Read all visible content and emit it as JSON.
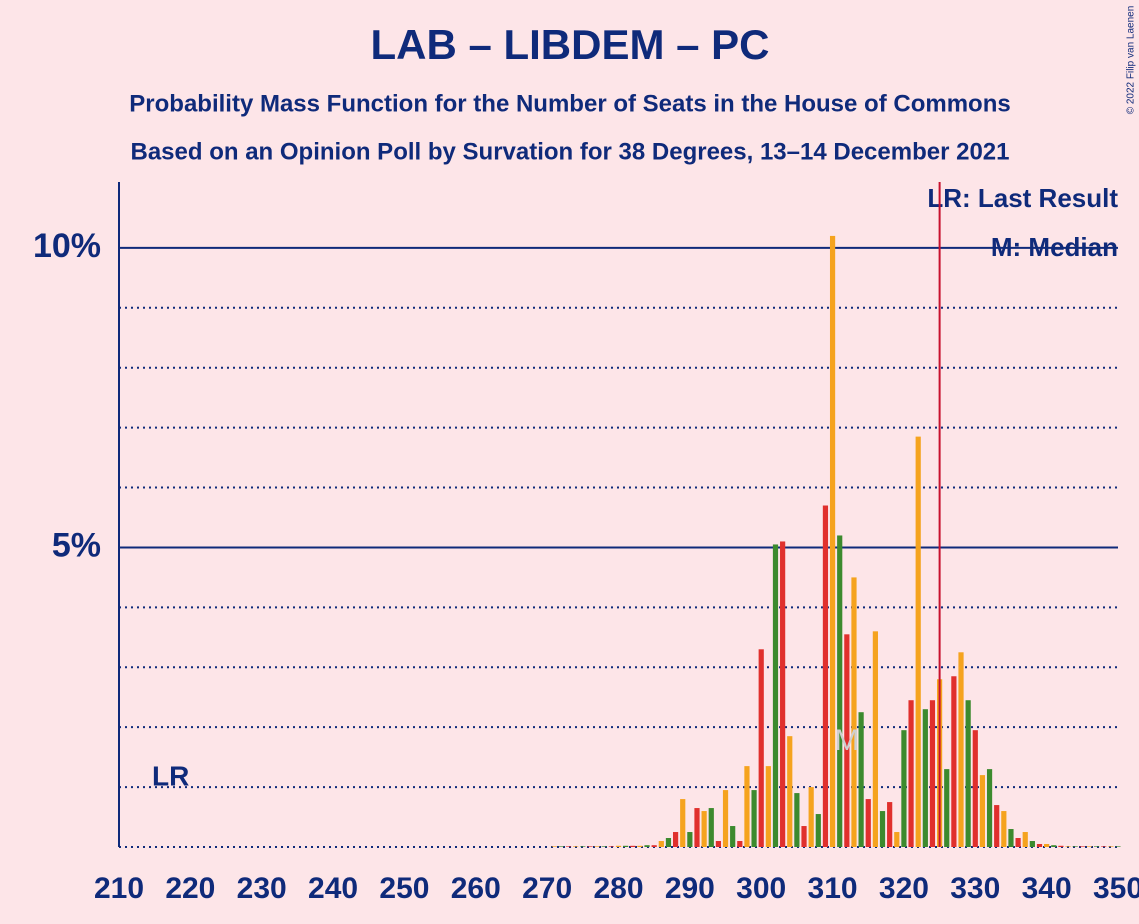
{
  "chart_data": {
    "type": "bar",
    "title": "LAB – LIBDEM – PC",
    "subtitle": "Probability Mass Function for the Number of Seats in the House of Commons",
    "subtitle2": "Based on an Opinion Poll by Survation for 38 Degrees, 13–14 December 2021",
    "copyright": "© 2022 Filip van Laenen",
    "legend": [
      "LR: Last Result",
      "M: Median"
    ],
    "lr_label": "LR",
    "median_label": "M",
    "median": 312,
    "last_result": 325,
    "colors": [
      "#e0302d",
      "#f5a31e",
      "#3c8a2e"
    ],
    "x": [
      210,
      211,
      212,
      213,
      214,
      215,
      216,
      217,
      218,
      219,
      220,
      221,
      222,
      223,
      224,
      225,
      226,
      227,
      228,
      229,
      230,
      231,
      232,
      233,
      234,
      235,
      236,
      237,
      238,
      239,
      240,
      241,
      242,
      243,
      244,
      245,
      246,
      247,
      248,
      249,
      250,
      251,
      252,
      253,
      254,
      255,
      256,
      257,
      258,
      259,
      260,
      261,
      262,
      263,
      264,
      265,
      266,
      267,
      268,
      269,
      270,
      271,
      272,
      273,
      274,
      275,
      276,
      277,
      278,
      279,
      280,
      281,
      282,
      283,
      284,
      285,
      286,
      287,
      288,
      289,
      290,
      291,
      292,
      293,
      294,
      295,
      296,
      297,
      298,
      299,
      300,
      301,
      302,
      303,
      304,
      305,
      306,
      307,
      308,
      309,
      310,
      311,
      312,
      313,
      314,
      315,
      316,
      317,
      318,
      319,
      320,
      321,
      322,
      323,
      324,
      325,
      326,
      327,
      328,
      329,
      330,
      331,
      332,
      333,
      334,
      335,
      336,
      337,
      338,
      339,
      340,
      341,
      342,
      343,
      344,
      345,
      346,
      347,
      348,
      349,
      350
    ],
    "values": [
      0,
      0,
      0,
      0,
      0,
      0,
      0,
      0,
      0,
      0,
      0,
      0,
      0,
      0,
      0,
      0,
      0,
      0,
      0,
      0,
      0,
      0,
      0,
      0,
      0,
      0,
      0,
      0,
      0,
      0,
      0,
      0,
      0,
      0,
      0,
      0,
      0,
      0,
      0,
      0,
      0,
      0,
      0,
      0,
      0,
      0,
      0,
      0,
      0,
      0,
      0,
      0,
      0,
      0,
      0,
      0,
      0,
      0,
      0,
      0,
      0,
      0.01,
      0.01,
      0.01,
      0.01,
      0.01,
      0.01,
      0.01,
      0.01,
      0.01,
      0.02,
      0.02,
      0.02,
      0.02,
      0.03,
      0.03,
      0.1,
      0.15,
      0.25,
      0.8,
      0.25,
      0.65,
      0.6,
      0.65,
      0.1,
      0.95,
      0.35,
      0.1,
      1.35,
      0.95,
      3.3,
      1.35,
      5.05,
      5.1,
      1.85,
      0.9,
      0.35,
      1.0,
      0.55,
      5.7,
      10.2,
      5.2,
      3.55,
      4.5,
      2.25,
      0.8,
      3.6,
      0.6,
      0.75,
      0.25,
      1.95,
      2.45,
      6.85,
      2.3,
      2.45,
      2.8,
      1.3,
      2.85,
      3.25,
      2.45,
      1.95,
      1.2,
      1.3,
      0.7,
      0.6,
      0.3,
      0.15,
      0.25,
      0.1,
      0.05,
      0.05,
      0.03,
      0.02,
      0.01,
      0.01,
      0.01,
      0.01,
      0.01,
      0.01,
      0.01,
      0.01
    ],
    "xlim": [
      210,
      350
    ],
    "xticks": [
      210,
      220,
      230,
      240,
      250,
      260,
      270,
      280,
      290,
      300,
      310,
      320,
      330,
      340,
      350
    ],
    "ylim": [
      0,
      11.1
    ],
    "yticks": [
      {
        "value": 5,
        "label": "5%"
      },
      {
        "value": 10,
        "label": "10%"
      }
    ],
    "minor_yticks": [
      0,
      1,
      2,
      3,
      4,
      6,
      7,
      8,
      9
    ],
    "grid": true
  }
}
